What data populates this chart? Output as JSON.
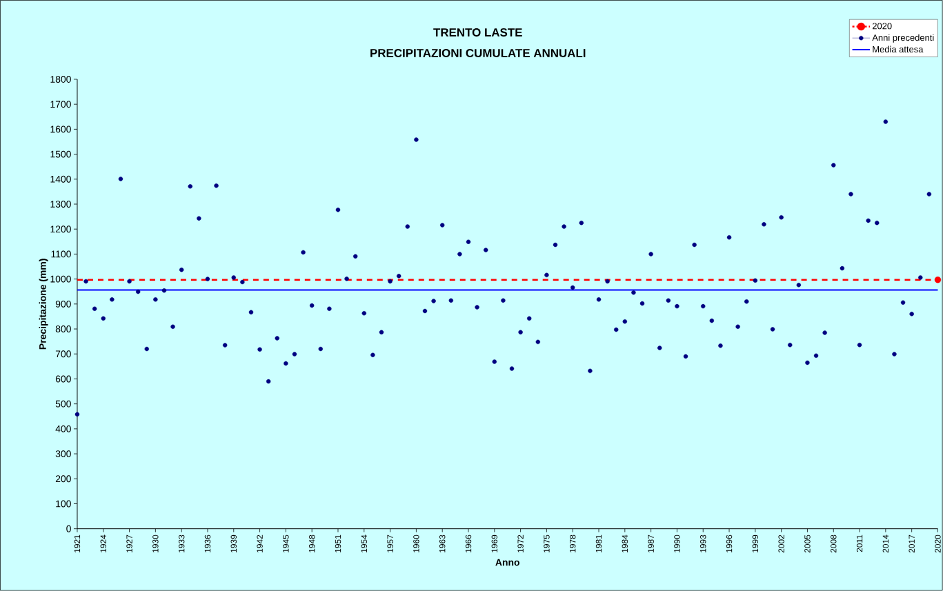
{
  "chart_data": {
    "type": "scatter",
    "title": "TRENTO LASTE",
    "subtitle": "PRECIPITAZIONI CUMULATE ANNUALI",
    "xlabel": "Anno",
    "ylabel": "Precipitazione (mm)",
    "xlim": [
      1921,
      2020
    ],
    "xticks": [
      1921,
      1924,
      1927,
      1930,
      1933,
      1936,
      1939,
      1942,
      1945,
      1948,
      1951,
      1954,
      1957,
      1960,
      1963,
      1966,
      1969,
      1972,
      1975,
      1978,
      1981,
      1984,
      1987,
      1990,
      1993,
      1996,
      1999,
      2002,
      2005,
      2008,
      2011,
      2014,
      2017,
      2020
    ],
    "ylim": [
      0,
      1800
    ],
    "yticks": [
      0,
      100,
      200,
      300,
      400,
      500,
      600,
      700,
      800,
      900,
      1000,
      1100,
      1200,
      1300,
      1400,
      1500,
      1600,
      1700,
      1800
    ],
    "legend": "top right",
    "grid": false,
    "ref_lines": [
      {
        "axis": "y",
        "value": 997,
        "color": "#ff0000",
        "line_style": "dashed"
      }
    ],
    "series": [
      {
        "name": "2020",
        "color": "#ff0000",
        "marker": "circle",
        "x": [
          2020
        ],
        "values": [
          997
        ]
      },
      {
        "name": "Anni precedenti",
        "color": "#000080",
        "marker": "circle",
        "x": [
          1921,
          1922,
          1923,
          1924,
          1925,
          1926,
          1927,
          1928,
          1929,
          1930,
          1931,
          1932,
          1933,
          1934,
          1935,
          1936,
          1937,
          1938,
          1939,
          1940,
          1941,
          1942,
          1943,
          1944,
          1945,
          1946,
          1947,
          1948,
          1949,
          1950,
          1951,
          1952,
          1953,
          1954,
          1955,
          1956,
          1957,
          1958,
          1959,
          1960,
          1961,
          1962,
          1963,
          1964,
          1965,
          1966,
          1967,
          1968,
          1969,
          1970,
          1971,
          1972,
          1973,
          1974,
          1975,
          1976,
          1977,
          1978,
          1979,
          1980,
          1981,
          1982,
          1983,
          1984,
          1985,
          1986,
          1987,
          1988,
          1989,
          1990,
          1991,
          1992,
          1993,
          1994,
          1995,
          1996,
          1997,
          1998,
          1999,
          2000,
          2001,
          2002,
          2003,
          2004,
          2005,
          2006,
          2007,
          2008,
          2009,
          2010,
          2011,
          2012,
          2013,
          2014,
          2015,
          2016,
          2017,
          2018,
          2019
        ],
        "values": [
          458,
          991,
          881,
          842,
          918,
          1401,
          991,
          949,
          720,
          918,
          954,
          809,
          1037,
          1371,
          1243,
          1000,
          1374,
          735,
          1006,
          988,
          867,
          718,
          590,
          763,
          662,
          699,
          1107,
          894,
          720,
          881,
          1277,
          1001,
          1091,
          863,
          696,
          787,
          991,
          1012,
          1210,
          1558,
          872,
          912,
          1216,
          914,
          1100,
          1149,
          887,
          1116,
          669,
          914,
          641,
          787,
          842,
          748,
          1016,
          1137,
          1210,
          966,
          1225,
          632,
          918,
          991,
          797,
          830,
          946,
          902,
          1100,
          724,
          914,
          891,
          690,
          1137,
          891,
          833,
          733,
          1167,
          809,
          910,
          994,
          1219,
          799,
          1247,
          736,
          976,
          665,
          693,
          785,
          1456,
          1043,
          1340,
          736,
          1234,
          1225,
          1630,
          699,
          906,
          860,
          1006,
          1340
        ]
      },
      {
        "name": "Media attesa",
        "type": "line",
        "color": "#0000ff",
        "line_style": "solid",
        "marker": "none",
        "x": [
          1921,
          2020
        ],
        "values": [
          956,
          956
        ]
      }
    ]
  }
}
